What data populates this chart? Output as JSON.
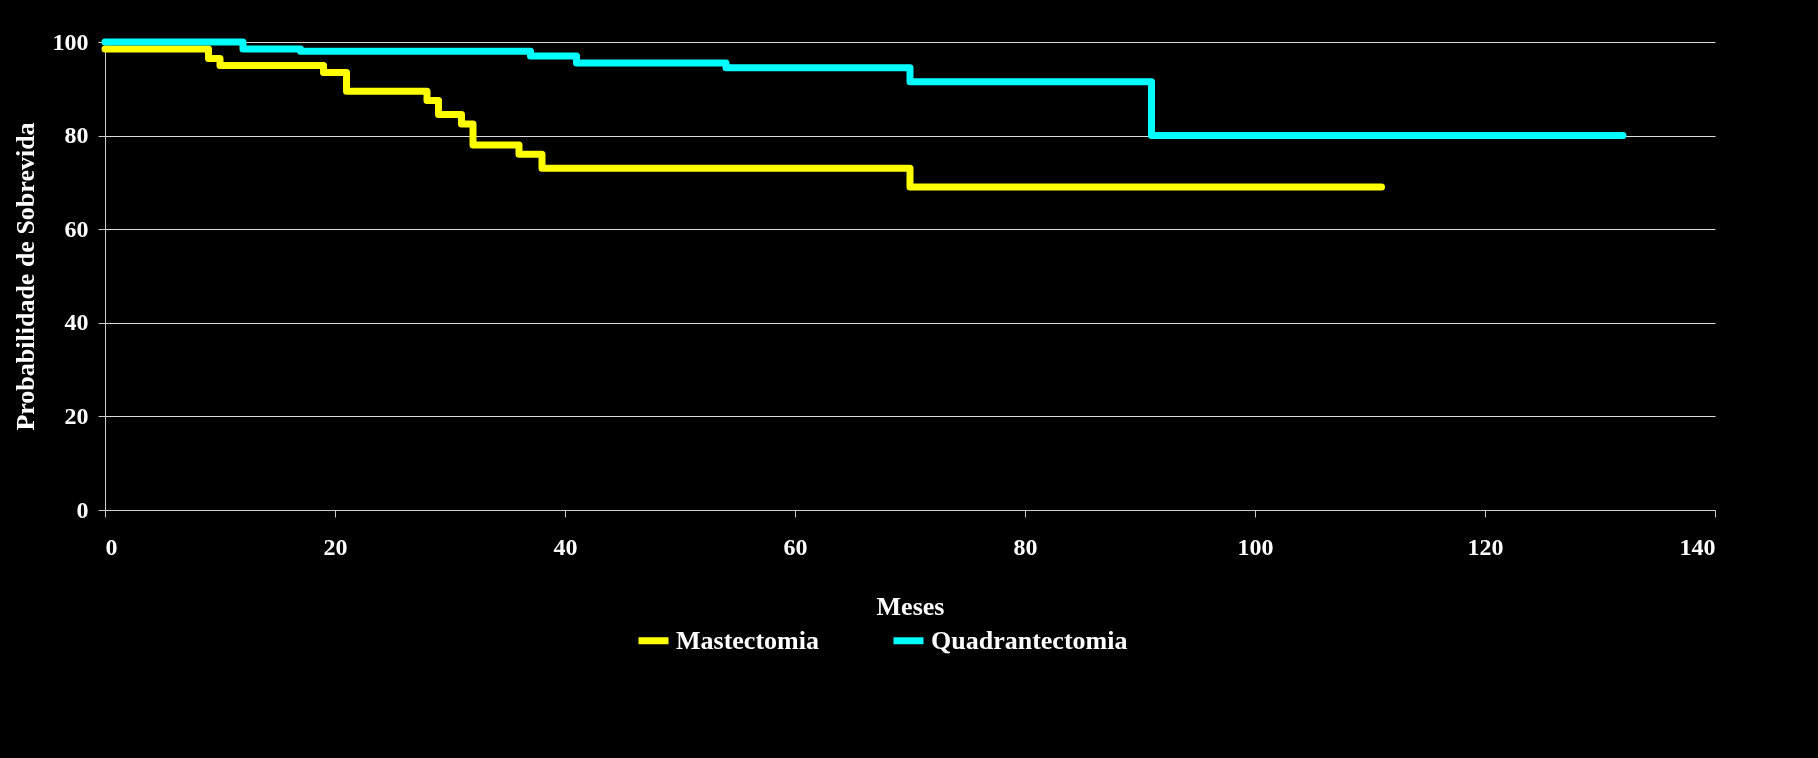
{
  "chart_data": {
    "type": "step",
    "xlabel": "Meses",
    "ylabel": "Probabilidade de Sobrevida",
    "xlim": [
      0,
      140
    ],
    "ylim": [
      0,
      100
    ],
    "xticks": [
      0,
      20,
      40,
      60,
      80,
      100,
      120,
      140
    ],
    "yticks": [
      0,
      20,
      40,
      60,
      80,
      100
    ],
    "grid": "y",
    "legend": "bottom",
    "line_style": "solid",
    "series": [
      {
        "name": "Mastectomia",
        "color": "#ffff00",
        "x": [
          0,
          9,
          10,
          19,
          21,
          28,
          29,
          31,
          32,
          36,
          38,
          70,
          111
        ],
        "values": [
          98.5,
          96.5,
          95,
          93.5,
          89.5,
          87.5,
          84.5,
          82.5,
          78,
          76,
          73,
          69,
          69
        ]
      },
      {
        "name": "Quadrantectomia",
        "color": "#00ffff",
        "x": [
          0,
          12,
          17,
          37,
          41,
          54,
          70,
          91,
          132
        ],
        "values": [
          100,
          98.5,
          98,
          97,
          95.5,
          94.5,
          91.5,
          80,
          80
        ]
      }
    ]
  }
}
